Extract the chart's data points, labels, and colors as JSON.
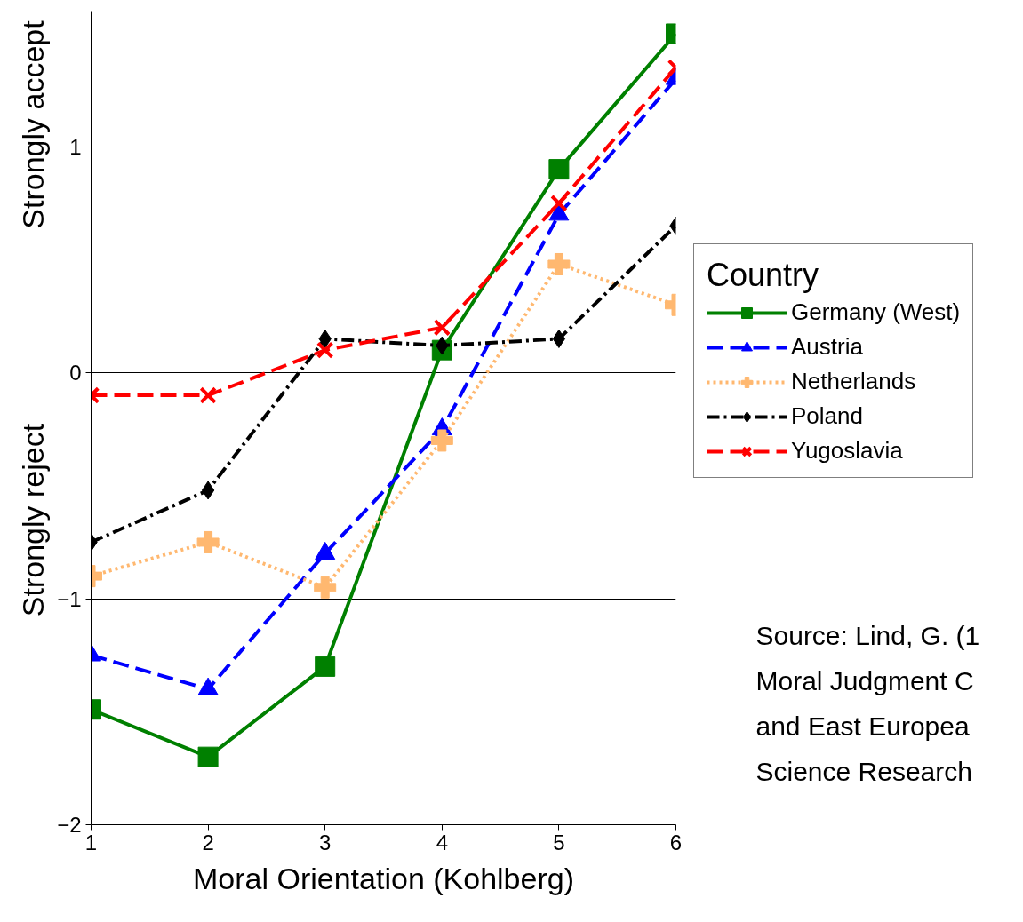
{
  "chart_data": {
    "type": "line",
    "xlabel": "Moral Orientation (Kohlberg)",
    "legend_title": "Country",
    "x": [
      1,
      2,
      3,
      4,
      5,
      6
    ],
    "xlim": [
      1,
      6
    ],
    "xticks": [
      1,
      2,
      3,
      4,
      5,
      6
    ],
    "ylim": [
      -2,
      1.6
    ],
    "yticks": [
      -2,
      -1,
      0,
      1
    ],
    "grid": "y",
    "legend": "right",
    "series": [
      {
        "name": "Germany (West)",
        "color": "#008000",
        "marker": "square",
        "line_style": "solid",
        "values": [
          -1.49,
          -1.7,
          -1.3,
          0.1,
          0.9,
          1.5
        ]
      },
      {
        "name": "Austria",
        "color": "#0000ff",
        "marker": "triangle",
        "line_style": "dashed",
        "values": [
          -1.25,
          -1.4,
          -0.8,
          -0.25,
          0.7,
          1.3
        ]
      },
      {
        "name": "Netherlands",
        "color": "#ffb870",
        "marker": "cross",
        "line_style": "dotted",
        "values": [
          -0.9,
          -0.75,
          -0.95,
          -0.3,
          0.48,
          0.3
        ]
      },
      {
        "name": "Poland",
        "color": "#000000",
        "marker": "diamond",
        "line_style": "dashdot",
        "values": [
          -0.75,
          -0.52,
          0.15,
          0.12,
          0.15,
          0.65
        ]
      },
      {
        "name": "Yugoslavia",
        "color": "#ff0000",
        "marker": "x",
        "line_style": "dashed",
        "values": [
          -0.1,
          -0.1,
          0.1,
          0.2,
          0.75,
          1.35
        ]
      }
    ],
    "annotations": [
      "Strongly accept",
      "Strongly reject",
      "Source: Lind, G. (1\nMoral Judgment C\nand East Europea\nScience Research"
    ]
  }
}
